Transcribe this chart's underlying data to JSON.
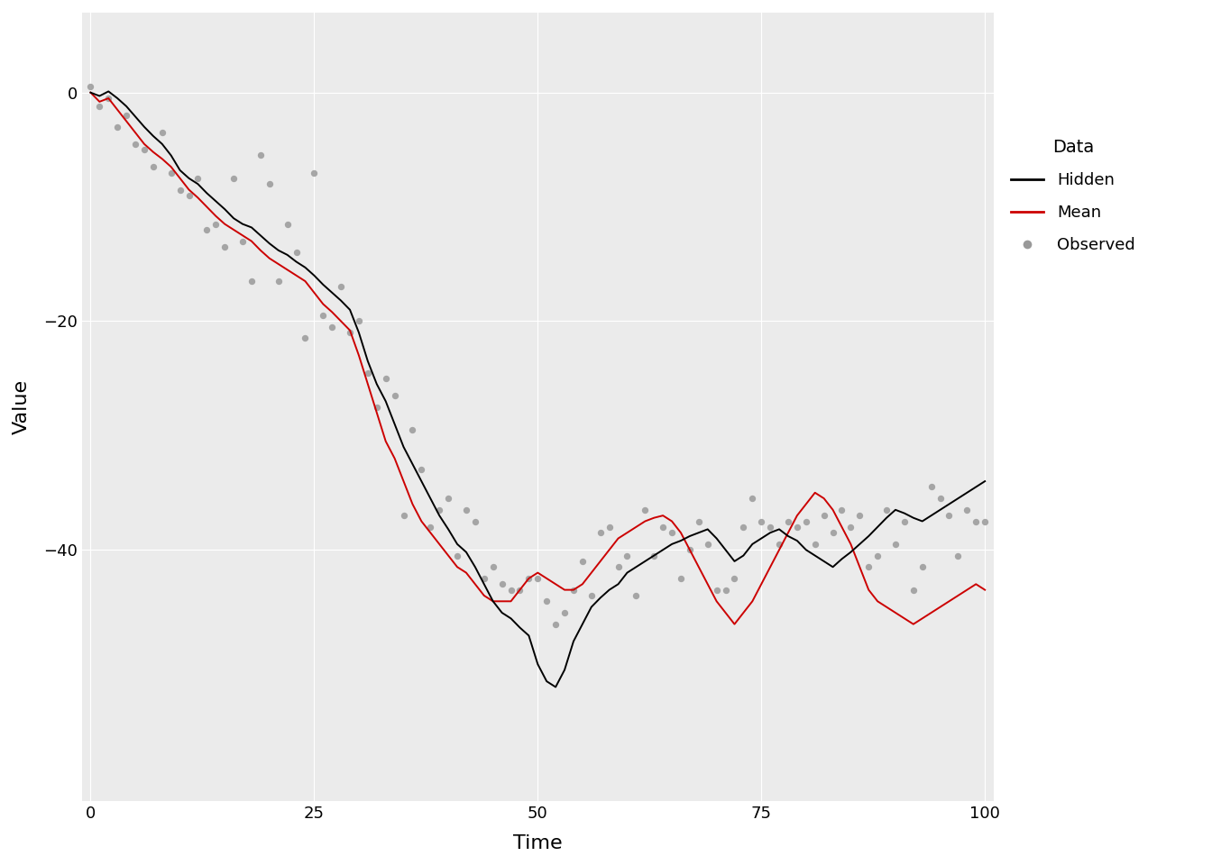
{
  "title": "",
  "xlabel": "Time",
  "ylabel": "Value",
  "xlim": [
    -1,
    101
  ],
  "ylim": [
    -62,
    7
  ],
  "yticks": [
    0,
    -20,
    -40
  ],
  "xticks": [
    0,
    25,
    50,
    75,
    100
  ],
  "hidden_color": "#000000",
  "mean_color": "#CC0000",
  "observed_color": "#999999",
  "legend_title": "Data",
  "legend_labels": [
    "Hidden",
    "Mean",
    "Observed"
  ],
  "panel_background": "#EBEBEB",
  "plot_background": "#FFFFFF",
  "grid_color": "#FFFFFF",
  "line_width": 1.4,
  "dot_size": 28,
  "n": 101,
  "hidden": [
    0.0,
    -0.3,
    0.1,
    -0.5,
    -1.2,
    -2.1,
    -3.0,
    -3.8,
    -4.5,
    -5.5,
    -6.8,
    -7.5,
    -8.0,
    -8.8,
    -9.5,
    -10.2,
    -11.0,
    -11.5,
    -11.8,
    -12.5,
    -13.2,
    -13.8,
    -14.2,
    -14.8,
    -15.3,
    -16.0,
    -16.8,
    -17.5,
    -18.2,
    -19.0,
    -21.0,
    -23.5,
    -25.5,
    -27.0,
    -29.0,
    -31.0,
    -32.5,
    -34.0,
    -35.5,
    -37.0,
    -38.2,
    -39.5,
    -40.2,
    -41.5,
    -43.0,
    -44.5,
    -45.5,
    -46.0,
    -46.8,
    -47.5,
    -50.0,
    -51.5,
    -52.0,
    -50.5,
    -48.0,
    -46.5,
    -45.0,
    -44.2,
    -43.5,
    -43.0,
    -42.0,
    -41.5,
    -41.0,
    -40.5,
    -40.0,
    -39.5,
    -39.2,
    -38.8,
    -38.5,
    -38.2,
    -39.0,
    -40.0,
    -41.0,
    -40.5,
    -39.5,
    -39.0,
    -38.5,
    -38.2,
    -38.8,
    -39.2,
    -40.0,
    -40.5,
    -41.0,
    -41.5,
    -40.8,
    -40.2,
    -39.5,
    -38.8,
    -38.0,
    -37.2,
    -36.5,
    -36.8,
    -37.2,
    -37.5,
    -37.0,
    -36.5,
    -36.0,
    -35.5,
    -35.0,
    -34.5,
    -34.0
  ],
  "mean_line": [
    0.0,
    -0.8,
    -0.5,
    -1.5,
    -2.5,
    -3.5,
    -4.5,
    -5.2,
    -5.8,
    -6.5,
    -7.5,
    -8.5,
    -9.2,
    -10.0,
    -10.8,
    -11.5,
    -12.0,
    -12.5,
    -13.0,
    -13.8,
    -14.5,
    -15.0,
    -15.5,
    -16.0,
    -16.5,
    -17.5,
    -18.5,
    -19.2,
    -20.0,
    -20.8,
    -23.0,
    -25.5,
    -28.0,
    -30.5,
    -32.0,
    -34.0,
    -36.0,
    -37.5,
    -38.5,
    -39.5,
    -40.5,
    -41.5,
    -42.0,
    -43.0,
    -44.0,
    -44.5,
    -44.5,
    -44.5,
    -43.5,
    -42.5,
    -42.0,
    -42.5,
    -43.0,
    -43.5,
    -43.5,
    -43.0,
    -42.0,
    -41.0,
    -40.0,
    -39.0,
    -38.5,
    -38.0,
    -37.5,
    -37.2,
    -37.0,
    -37.5,
    -38.5,
    -40.0,
    -41.5,
    -43.0,
    -44.5,
    -45.5,
    -46.5,
    -45.5,
    -44.5,
    -43.0,
    -41.5,
    -40.0,
    -38.5,
    -37.0,
    -36.0,
    -35.0,
    -35.5,
    -36.5,
    -38.0,
    -39.5,
    -41.5,
    -43.5,
    -44.5,
    -45.0,
    -45.5,
    -46.0,
    -46.5,
    -46.0,
    -45.5,
    -45.0,
    -44.5,
    -44.0,
    -43.5,
    -43.0,
    -43.5
  ],
  "observed": [
    0.5,
    -1.2,
    -0.5,
    -3.0,
    -2.0,
    -4.5,
    -5.0,
    -6.5,
    -3.5,
    -7.0,
    -8.5,
    -9.0,
    -7.5,
    -12.0,
    -11.5,
    -13.5,
    -7.5,
    -13.0,
    -16.5,
    -5.5,
    -8.0,
    -16.5,
    -11.5,
    -14.0,
    -21.5,
    -7.0,
    -19.5,
    -20.5,
    -17.0,
    -21.0,
    -20.0,
    -24.5,
    -27.5,
    -25.0,
    -26.5,
    -37.0,
    -29.5,
    -33.0,
    -38.0,
    -36.5,
    -35.5,
    -40.5,
    -36.5,
    -37.5,
    -42.5,
    -41.5,
    -43.0,
    -43.5,
    -43.5,
    -42.5,
    -42.5,
    -44.5,
    -46.5,
    -45.5,
    -43.5,
    -41.0,
    -44.0,
    -38.5,
    -38.0,
    -41.5,
    -40.5,
    -44.0,
    -36.5,
    -40.5,
    -38.0,
    -38.5,
    -42.5,
    -40.0,
    -37.5,
    -39.5,
    -43.5,
    -43.5,
    -42.5,
    -38.0,
    -35.5,
    -37.5,
    -38.0,
    -39.5,
    -37.5,
    -38.0,
    -37.5,
    -39.5,
    -37.0,
    -38.5,
    -36.5,
    -38.0,
    -37.0,
    -41.5,
    -40.5,
    -36.5,
    -39.5,
    -37.5,
    -43.5,
    -41.5,
    -34.5,
    -35.5,
    -37.0,
    -40.5,
    -36.5,
    -37.5,
    -37.5
  ]
}
